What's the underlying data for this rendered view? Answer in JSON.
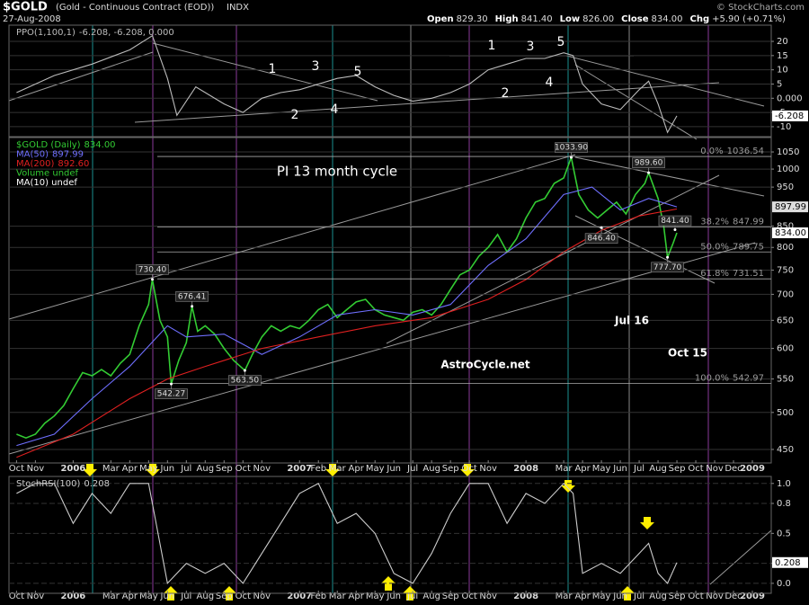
{
  "header": {
    "symbol": "$GOLD",
    "name": "(Gold - Continuous Contract (EOD))",
    "exchange": "INDX",
    "date": "27-Aug-2008",
    "quote": [
      {
        "label": "Open",
        "value": "829.30"
      },
      {
        "label": "High",
        "value": "841.40"
      },
      {
        "label": "Low",
        "value": "826.00"
      },
      {
        "label": "Close",
        "value": "834.00"
      },
      {
        "label": "Chg",
        "value": "+5.90 (+0.71%)"
      }
    ],
    "credit": "© StockCharts.com"
  },
  "chart_data": [
    {
      "type": "line",
      "xlim": [
        -0.4,
        40
      ],
      "ylim": [
        -13.5,
        25.7
      ],
      "yticks": [
        20,
        15,
        10,
        5,
        {
          "value": 0,
          "label": "0.000"
        },
        -5,
        -10
      ],
      "grid": true,
      "last_label": "-6.208",
      "series": [
        {
          "name": "PPO(1,100,1)",
          "legend_value": "-6.208, -6.208, 0.000",
          "color": "#bbbbbb",
          "x": [
            0,
            2,
            4,
            6,
            7.2,
            8,
            8.5,
            9.5,
            11,
            12,
            13,
            14,
            15,
            16,
            17,
            18,
            19,
            20,
            21,
            22,
            23,
            24,
            25,
            26,
            27,
            28,
            29,
            29.5,
            30,
            31,
            32,
            33,
            33.5,
            34,
            34.5,
            35
          ],
          "values": [
            2,
            8,
            12,
            17,
            22,
            7,
            -6,
            4,
            -2,
            -5,
            0,
            2,
            3,
            5,
            7,
            8,
            4,
            1,
            -1,
            0,
            2,
            5,
            10,
            12,
            14,
            14,
            16,
            15,
            5,
            -2,
            -4,
            3,
            6,
            -2,
            -12,
            -6.208
          ]
        }
      ],
      "annotations": [
        "1",
        "3",
        "5",
        "2",
        "4",
        "1",
        "3",
        "5",
        "2",
        "4"
      ]
    },
    {
      "type": "line",
      "log_scale": true,
      "xlim": [
        -0.4,
        40
      ],
      "ylim": [
        433,
        1094
      ],
      "yticks": [
        1050,
        1000,
        950,
        850,
        800,
        750,
        700,
        650,
        600,
        550,
        500,
        450
      ],
      "grid": true,
      "xticks": [
        {
          "value": 0,
          "label": "Oct"
        },
        {
          "value": 1,
          "label": "Nov"
        },
        {
          "value": 3,
          "label": "2006"
        },
        {
          "value": 5,
          "label": "Mar"
        },
        {
          "value": 6,
          "label": "Apr"
        },
        {
          "value": 7,
          "label": "May"
        },
        {
          "value": 8,
          "label": "Jun"
        },
        {
          "value": 9,
          "label": "Jul"
        },
        {
          "value": 10,
          "label": "Aug"
        },
        {
          "value": 11,
          "label": "Sep"
        },
        {
          "value": 12,
          "label": "Oct"
        },
        {
          "value": 13,
          "label": "Nov"
        },
        {
          "value": 15,
          "label": "2007"
        },
        {
          "value": 16,
          "label": "Feb"
        },
        {
          "value": 17,
          "label": "Mar"
        },
        {
          "value": 18,
          "label": "Apr"
        },
        {
          "value": 19,
          "label": "May"
        },
        {
          "value": 20,
          "label": "Jun"
        },
        {
          "value": 21,
          "label": "Jul"
        },
        {
          "value": 22,
          "label": "Aug"
        },
        {
          "value": 23,
          "label": "Sep"
        },
        {
          "value": 24,
          "label": "Oct"
        },
        {
          "value": 25,
          "label": "Nov"
        },
        {
          "value": 27,
          "label": "2008"
        },
        {
          "value": 29,
          "label": "Mar"
        },
        {
          "value": 30,
          "label": "Apr"
        },
        {
          "value": 31,
          "label": "May"
        },
        {
          "value": 32,
          "label": "Jun"
        },
        {
          "value": 33,
          "label": "Jul"
        },
        {
          "value": 34,
          "label": "Aug"
        },
        {
          "value": 35,
          "label": "Sep"
        },
        {
          "value": 36,
          "label": "Oct"
        },
        {
          "value": 37,
          "label": "Nov"
        },
        {
          "value": 38,
          "label": "Dec"
        },
        {
          "value": 39,
          "label": "2009"
        }
      ],
      "series": [
        {
          "name": "$GOLD (Daily)",
          "legend_value": "834.00",
          "color": "#33cc33",
          "x": [
            0,
            0.5,
            1,
            1.5,
            2,
            2.5,
            3,
            3.5,
            4,
            4.5,
            5,
            5.5,
            6,
            6.5,
            7,
            7.2,
            7.6,
            8,
            8.2,
            8.6,
            9,
            9.3,
            9.6,
            10,
            10.5,
            11,
            11.5,
            12.1,
            12.5,
            13,
            13.5,
            14,
            14.5,
            15,
            15.5,
            16,
            16.5,
            17,
            17.5,
            18,
            18.5,
            19,
            19.5,
            20,
            20.5,
            21,
            21.5,
            22,
            22.5,
            23,
            23.5,
            24,
            24.5,
            25,
            25.5,
            26,
            26.5,
            27,
            27.5,
            28,
            28.5,
            29,
            29.4,
            29.8,
            30.3,
            30.8,
            31.3,
            31.8,
            32.3,
            32.8,
            33.3,
            33.5,
            34,
            34.3,
            34.5,
            34.8,
            35
          ],
          "values": [
            470,
            465,
            470,
            485,
            495,
            510,
            535,
            560,
            555,
            565,
            555,
            575,
            590,
            640,
            680,
            730.4,
            650,
            620,
            542.27,
            580,
            610,
            676.41,
            630,
            640,
            625,
            600,
            580,
            563.5,
            590,
            620,
            640,
            630,
            640,
            635,
            650,
            670,
            680,
            655,
            670,
            685,
            690,
            670,
            660,
            655,
            650,
            665,
            670,
            660,
            680,
            710,
            740,
            750,
            780,
            800,
            830,
            790,
            820,
            870,
            910,
            920,
            960,
            975,
            1033.9,
            930,
            890,
            870,
            890,
            910,
            880,
            930,
            960,
            989.6,
            920,
            850,
            777.7,
            810,
            834
          ]
        },
        {
          "name": "MA(50)",
          "legend_value": "897.99",
          "color": "#6f6fff",
          "x": [
            0,
            2,
            4,
            6,
            8,
            9,
            11,
            13,
            15,
            17,
            19,
            21,
            23,
            25,
            27,
            29,
            30.5,
            32,
            33.5,
            35
          ],
          "values": [
            455,
            470,
            520,
            570,
            640,
            620,
            625,
            590,
            620,
            660,
            670,
            660,
            680,
            760,
            820,
            930,
            950,
            890,
            920,
            897.99
          ]
        },
        {
          "name": "MA(200)",
          "legend_value": "892.60",
          "color": "#e02020",
          "x": [
            0,
            3,
            6,
            8,
            10,
            13,
            16,
            19,
            22,
            25,
            27,
            29,
            31,
            33,
            35
          ],
          "values": [
            440,
            470,
            520,
            550,
            570,
            600,
            620,
            640,
            655,
            690,
            730,
            790,
            840,
            875,
            892.6
          ]
        }
      ],
      "legend_extra": [
        {
          "name": "Volume undef",
          "color": "#33cc33"
        },
        {
          "name": "MA(10) undef",
          "color": "#ffffff"
        }
      ],
      "price_labels": [
        {
          "x": 7.2,
          "value": 730.4,
          "label": "730.40"
        },
        {
          "x": 8.2,
          "value": 542.27,
          "label": "542.27"
        },
        {
          "x": 9.3,
          "value": 676.41,
          "label": "676.41"
        },
        {
          "x": 12.1,
          "value": 563.5,
          "label": "563.50"
        },
        {
          "x": 29.4,
          "value": 1033.9,
          "label": "1033.90"
        },
        {
          "x": 33.5,
          "value": 989.6,
          "label": "989.60"
        },
        {
          "x": 31,
          "value": 846.4,
          "label": "846.40"
        },
        {
          "x": 34.9,
          "value": 841.4,
          "label": "841.40"
        },
        {
          "x": 34.5,
          "value": 777.7,
          "label": "777.70"
        }
      ],
      "fib_levels": [
        {
          "label": "0.0%",
          "value": 1036.54
        },
        {
          "label": "38.2%",
          "value": 847.99
        },
        {
          "label": "50.0%",
          "value": 789.75
        },
        {
          "label": "61.8%",
          "value": 731.51
        },
        {
          "label": "100.0%",
          "value": 542.97
        }
      ],
      "annotations": [
        "PI 13 month cycle",
        "AstroCycle.net",
        "Jul 16",
        "Oct 15"
      ]
    },
    {
      "type": "line",
      "xlim": [
        -0.4,
        40
      ],
      "ylim": [
        -0.1,
        1.07
      ],
      "yticks": [
        {
          "value": 1,
          "label": "1.0"
        },
        0.8,
        0.5,
        0.2,
        {
          "value": 0,
          "label": "0.0"
        }
      ],
      "grid": true,
      "last_label": "0.208",
      "series": [
        {
          "name": "StochRSI(100)",
          "legend_value": "0.208",
          "color": "#cccccc",
          "x": [
            0,
            1,
            2,
            3,
            4,
            5,
            6,
            7,
            7.5,
            8,
            9,
            10,
            11,
            12,
            13,
            14,
            15,
            16,
            17,
            18,
            19,
            20,
            21,
            22,
            23,
            24,
            25,
            26,
            27,
            28,
            29,
            29.5,
            30,
            31,
            32,
            33,
            33.5,
            34,
            34.5,
            35
          ],
          "values": [
            0.9,
            1,
            1,
            0.6,
            0.9,
            0.7,
            1,
            1,
            0.5,
            0,
            0.2,
            0.1,
            0.2,
            0,
            0.3,
            0.6,
            0.9,
            1,
            0.6,
            0.7,
            0.5,
            0.1,
            0,
            0.3,
            0.7,
            1,
            1,
            0.6,
            0.9,
            0.8,
            1,
            0.9,
            0.1,
            0.2,
            0.1,
            0.3,
            0.4,
            0.1,
            0,
            0.208
          ]
        }
      ]
    }
  ]
}
